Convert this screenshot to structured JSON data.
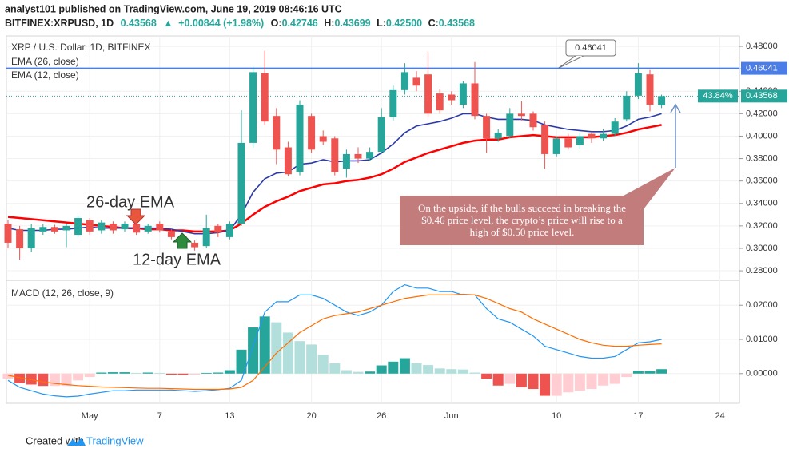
{
  "header": {
    "publisher": "analyst101 published on TradingView.com, June 19, 2019 08:46:16 UTC",
    "symbol": "BITFINEX:XRPUSD, 1D",
    "price": "0.43568",
    "arrow": "▲",
    "change": "+0.00844 (+1.98%)",
    "o_label": "O:",
    "o": "0.42746",
    "h_label": "H:",
    "h": "0.43699",
    "l_label": "L:",
    "l": "0.42500",
    "c_label": "C:",
    "c": "0.43568"
  },
  "footer": {
    "created": "Created with",
    "brand": "TradingView"
  },
  "chart_data": {
    "type": "candlestick",
    "title": "XRP / U.S. Dollar, 1D, BITFINEX",
    "categories": [
      null,
      null,
      null,
      null,
      null,
      null,
      null,
      "May",
      null,
      null,
      null,
      null,
      null,
      "7",
      null,
      null,
      null,
      null,
      null,
      "13",
      null,
      null,
      null,
      null,
      null,
      null,
      "20",
      null,
      null,
      null,
      null,
      null,
      "26",
      null,
      null,
      null,
      null,
      null,
      "Jun",
      null,
      null,
      null,
      null,
      null,
      null,
      null,
      null,
      "10",
      null,
      null,
      null,
      null,
      null,
      null,
      "17",
      null,
      null,
      null,
      null,
      null,
      null,
      "24"
    ],
    "open": [
      0.322,
      0.317,
      0.3,
      0.315,
      0.319,
      0.316,
      0.312,
      0.325,
      0.316,
      0.322,
      0.317,
      0.322,
      0.315,
      0.322,
      0.315,
      0.311,
      0.305,
      0.302,
      0.32,
      0.31,
      0.322,
      0.394,
      0.456,
      0.418,
      0.39,
      0.368,
      0.418,
      0.4,
      0.398,
      0.371,
      0.384,
      0.38,
      0.386,
      0.417,
      0.441,
      0.452,
      0.455,
      0.438,
      0.437,
      0.428,
      0.447,
      0.418,
      0.398,
      0.4,
      0.42,
      0.42,
      0.41,
      0.384,
      0.398,
      0.392,
      0.402,
      0.398,
      0.402,
      0.415,
      0.436,
      0.455,
      0.42746,
      null,
      null,
      null,
      null,
      null
    ],
    "high": [
      0.325,
      0.32,
      0.322,
      0.322,
      0.321,
      0.322,
      0.329,
      0.327,
      0.325,
      0.324,
      0.324,
      0.33,
      0.322,
      0.324,
      0.317,
      0.313,
      0.307,
      0.33,
      0.322,
      0.324,
      0.423,
      0.462,
      0.476,
      0.425,
      0.395,
      0.432,
      0.42,
      0.405,
      0.4,
      0.388,
      0.39,
      0.39,
      0.425,
      0.445,
      0.465,
      0.458,
      0.475,
      0.442,
      0.44,
      0.449,
      0.466,
      0.42,
      0.406,
      0.425,
      0.431,
      0.422,
      0.413,
      0.4,
      0.402,
      0.403,
      0.404,
      0.406,
      0.416,
      0.44,
      0.465,
      0.459,
      0.43699,
      null,
      null,
      null,
      null,
      null
    ],
    "low": [
      0.3,
      0.29,
      0.297,
      0.312,
      0.313,
      0.301,
      0.31,
      0.312,
      0.313,
      0.313,
      0.315,
      0.312,
      0.313,
      0.314,
      0.308,
      0.302,
      0.298,
      0.3,
      0.31,
      0.308,
      0.32,
      0.39,
      0.41,
      0.375,
      0.364,
      0.365,
      0.385,
      0.392,
      0.365,
      0.363,
      0.376,
      0.378,
      0.384,
      0.414,
      0.437,
      0.44,
      0.417,
      0.42,
      0.428,
      0.425,
      0.415,
      0.385,
      0.395,
      0.398,
      0.414,
      0.405,
      0.371,
      0.382,
      0.388,
      0.389,
      0.394,
      0.396,
      0.4,
      0.413,
      0.433,
      0.422,
      0.425,
      null,
      null,
      null,
      null,
      null
    ],
    "close": [
      0.305,
      0.3,
      0.318,
      0.319,
      0.315,
      0.32,
      0.327,
      0.315,
      0.323,
      0.316,
      0.322,
      0.314,
      0.32,
      0.316,
      0.31,
      0.304,
      0.301,
      0.318,
      0.314,
      0.322,
      0.394,
      0.457,
      0.413,
      0.388,
      0.366,
      0.428,
      0.388,
      0.395,
      0.368,
      0.384,
      0.38,
      0.386,
      0.417,
      0.441,
      0.457,
      0.445,
      0.42,
      0.423,
      0.432,
      0.447,
      0.418,
      0.398,
      0.403,
      0.42,
      0.418,
      0.408,
      0.384,
      0.398,
      0.39,
      0.4,
      0.398,
      0.402,
      0.413,
      0.436,
      0.456,
      0.428,
      0.43568,
      null,
      null,
      null,
      null,
      null
    ],
    "up_color": "#26a69a",
    "down_color": "#ef5350",
    "series": [
      {
        "name": "EMA (26, close)",
        "color": "#ff0000",
        "values": [
          0.328,
          0.327,
          0.326,
          0.325,
          0.324,
          0.323,
          0.322,
          0.321,
          0.32,
          0.319,
          0.318,
          0.318,
          0.317,
          0.317,
          0.316,
          0.316,
          0.315,
          0.315,
          0.315,
          0.316,
          0.322,
          0.33,
          0.337,
          0.342,
          0.346,
          0.351,
          0.354,
          0.357,
          0.358,
          0.36,
          0.361,
          0.363,
          0.366,
          0.371,
          0.377,
          0.381,
          0.385,
          0.388,
          0.391,
          0.394,
          0.396,
          0.397,
          0.397,
          0.399,
          0.4,
          0.401,
          0.4,
          0.399,
          0.399,
          0.399,
          0.399,
          0.4,
          0.401,
          0.403,
          0.406,
          0.408,
          0.41,
          null,
          null,
          null,
          null,
          null
        ]
      },
      {
        "name": "EMA (12, close)",
        "color": "#2b3aa8",
        "values": [
          0.318,
          0.316,
          0.316,
          0.316,
          0.317,
          0.317,
          0.318,
          0.319,
          0.318,
          0.318,
          0.318,
          0.318,
          0.318,
          0.318,
          0.317,
          0.315,
          0.313,
          0.313,
          0.314,
          0.316,
          0.33,
          0.35,
          0.362,
          0.367,
          0.368,
          0.375,
          0.376,
          0.379,
          0.377,
          0.378,
          0.378,
          0.379,
          0.385,
          0.393,
          0.403,
          0.409,
          0.411,
          0.413,
          0.416,
          0.42,
          0.42,
          0.417,
          0.415,
          0.415,
          0.415,
          0.414,
          0.41,
          0.408,
          0.406,
          0.405,
          0.404,
          0.404,
          0.405,
          0.409,
          0.415,
          0.417,
          0.42,
          null,
          null,
          null,
          null,
          null
        ]
      }
    ],
    "ylim": [
      0.2715,
      0.4893
    ],
    "yticks": [
      {
        "value": 0.28,
        "label": "0.28000"
      },
      {
        "value": 0.3,
        "label": "0.30000"
      },
      {
        "value": 0.32,
        "label": "0.32000"
      },
      {
        "value": 0.34,
        "label": "0.34000"
      },
      {
        "value": 0.36,
        "label": "0.36000"
      },
      {
        "value": 0.38,
        "label": "0.38000"
      },
      {
        "value": 0.4,
        "label": "0.40000"
      },
      {
        "value": 0.42,
        "label": "0.42000"
      },
      {
        "value": 0.44,
        "label": "0.44000"
      },
      {
        "value": 0.46,
        "label": "0.46000"
      },
      {
        "value": 0.48,
        "label": "0.48000"
      }
    ],
    "grid": true,
    "hline": {
      "value": 0.46041,
      "color": "#4a7de8"
    },
    "last": {
      "value": 0.43568,
      "percent": "43.84%",
      "color": "#26a69a"
    },
    "annotations": {
      "ema26": "26-day EMA",
      "ema12": "12-day EMA",
      "callout": [
        "On the upside, if the bulls succeed in breaking the",
        "$0.46 price level, the crypto’s price will rise to a",
        "high of $0.50 price level."
      ]
    },
    "macd": {
      "title": "MACD (12, 26, close, 9)",
      "ylim": [
        -0.0087,
        0.0273
      ],
      "yticks": [
        {
          "value": 0,
          "label": "0.00000"
        },
        {
          "value": 0.01,
          "label": "0.01000"
        },
        {
          "value": 0.02,
          "label": "0.02000"
        }
      ],
      "histogram": [
        -0.0015,
        -0.0028,
        -0.0032,
        -0.0036,
        -0.0036,
        -0.0036,
        -0.002,
        -0.001,
        0.0003,
        0.0004,
        0.0004,
        0.0002,
        0.0003,
        0.0002,
        -0.0003,
        -0.0004,
        -0.0003,
        0.0002,
        0.0003,
        0.001,
        0.007,
        0.0135,
        0.0167,
        0.015,
        0.012,
        0.0095,
        0.0085,
        0.0055,
        0.003,
        0.001,
        0.0005,
        0.0006,
        0.0024,
        0.0035,
        0.0045,
        0.003,
        0.0025,
        0.0015,
        0.0013,
        0.0012,
        0.0003,
        -0.0015,
        -0.0035,
        -0.003,
        -0.004,
        -0.0045,
        -0.0065,
        -0.0065,
        -0.0055,
        -0.005,
        -0.0045,
        -0.0035,
        -0.003,
        -0.001,
        0.0008,
        0.0008,
        0.0013,
        null,
        null,
        null,
        null,
        null
      ],
      "hist_colors": {
        "up_strong": "#26a69a",
        "up_weak": "#b2dfdb",
        "down_strong": "#ef5350",
        "down_weak": "#ffcdd2"
      },
      "series": [
        {
          "name": "MACD",
          "color": "#2196f3",
          "values": [
            -0.002,
            -0.004,
            -0.005,
            -0.006,
            -0.0065,
            -0.0068,
            -0.0066,
            -0.006,
            -0.0055,
            -0.005,
            -0.005,
            -0.0048,
            -0.0048,
            -0.0048,
            -0.0048,
            -0.005,
            -0.0052,
            -0.005,
            -0.0047,
            -0.0043,
            -0.002,
            0.008,
            0.018,
            0.021,
            0.021,
            0.023,
            0.023,
            0.022,
            0.02,
            0.018,
            0.017,
            0.018,
            0.02,
            0.024,
            0.026,
            0.025,
            0.025,
            0.024,
            0.024,
            0.023,
            0.023,
            0.019,
            0.016,
            0.015,
            0.013,
            0.011,
            0.008,
            0.007,
            0.006,
            0.005,
            0.0045,
            0.0045,
            0.005,
            0.007,
            0.009,
            0.0093,
            0.01,
            null,
            null,
            null,
            null,
            null
          ]
        },
        {
          "name": "Signal",
          "color": "#ff6d00",
          "values": [
            -0.0005,
            -0.0012,
            -0.0018,
            -0.0024,
            -0.0029,
            -0.0032,
            -0.0035,
            -0.0037,
            -0.0039,
            -0.004,
            -0.0041,
            -0.0042,
            -0.0043,
            -0.0043,
            -0.0044,
            -0.0045,
            -0.0046,
            -0.0046,
            -0.0046,
            -0.0045,
            -0.004,
            -0.002,
            0.002,
            0.006,
            0.009,
            0.012,
            0.014,
            0.016,
            0.017,
            0.0175,
            0.018,
            0.019,
            0.02,
            0.021,
            0.022,
            0.0225,
            0.023,
            0.023,
            0.023,
            0.0232,
            0.023,
            0.022,
            0.0205,
            0.019,
            0.018,
            0.016,
            0.0145,
            0.013,
            0.0115,
            0.01,
            0.009,
            0.0083,
            0.008,
            0.008,
            0.0083,
            0.0085,
            0.0087,
            null,
            null,
            null,
            null,
            null
          ]
        }
      ]
    }
  }
}
